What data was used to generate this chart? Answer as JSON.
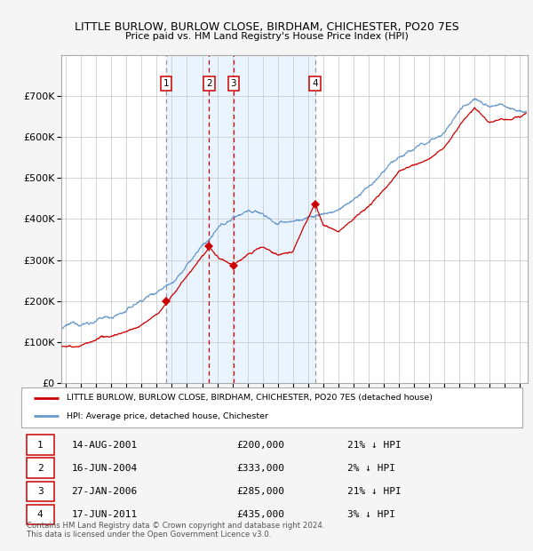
{
  "title": "LITTLE BURLOW, BURLOW CLOSE, BIRDHAM, CHICHESTER, PO20 7ES",
  "subtitle": "Price paid vs. HM Land Registry's House Price Index (HPI)",
  "ylim": [
    0,
    800000
  ],
  "yticks": [
    0,
    100000,
    200000,
    300000,
    400000,
    500000,
    600000,
    700000
  ],
  "ytick_labels": [
    "£0",
    "£100K",
    "£200K",
    "£300K",
    "£400K",
    "£500K",
    "£600K",
    "£700K"
  ],
  "xmin": 1994.7,
  "xmax": 2025.5,
  "background_color": "#f5f5f5",
  "plot_bg_color": "#ffffff",
  "grid_color": "#cccccc",
  "legend_label_red": "LITTLE BURLOW, BURLOW CLOSE, BIRDHAM, CHICHESTER, PO20 7ES (detached house)",
  "legend_label_blue": "HPI: Average price, detached house, Chichester",
  "sale_points": [
    {
      "label": "1",
      "date_x": 2001.62,
      "price": 200000,
      "vline_style": "dashed_gray"
    },
    {
      "label": "2",
      "date_x": 2004.46,
      "price": 333000,
      "vline_style": "dashed_red"
    },
    {
      "label": "3",
      "date_x": 2006.07,
      "price": 285000,
      "vline_style": "dashed_red"
    },
    {
      "label": "4",
      "date_x": 2011.46,
      "price": 435000,
      "vline_style": "dashed_gray"
    }
  ],
  "sale_annotations": [
    {
      "label": "1",
      "date": "14-AUG-2001",
      "price": "£200,000",
      "hpi_pct": "21% ↓ HPI"
    },
    {
      "label": "2",
      "date": "16-JUN-2004",
      "price": "£333,000",
      "hpi_pct": "2% ↓ HPI"
    },
    {
      "label": "3",
      "date": "27-JAN-2006",
      "price": "£285,000",
      "hpi_pct": "21% ↓ HPI"
    },
    {
      "label": "4",
      "date": "17-JUN-2011",
      "price": "£435,000",
      "hpi_pct": "3% ↓ HPI"
    }
  ],
  "footer": "Contains HM Land Registry data © Crown copyright and database right 2024.\nThis data is licensed under the Open Government Licence v3.0.",
  "red_line_color": "#cc0000",
  "blue_line_color": "#6699cc",
  "shade_color": "#ddeeff",
  "label_box_edge": "#cc0000",
  "vline_red": "#cc0000",
  "vline_gray": "#999999"
}
